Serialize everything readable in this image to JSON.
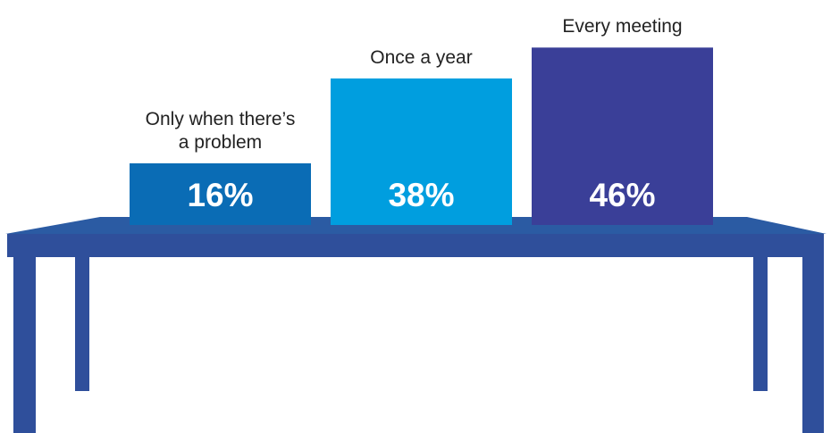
{
  "chart_data": {
    "type": "bar",
    "categories": [
      "Only when there’s a problem",
      "Once a year",
      "Every meeting"
    ],
    "values": [
      16,
      38,
      46
    ],
    "value_labels": [
      "16%",
      "38%",
      "46%"
    ],
    "colors": [
      "#0a6cb5",
      "#009edf",
      "#3a3f98"
    ]
  }
}
